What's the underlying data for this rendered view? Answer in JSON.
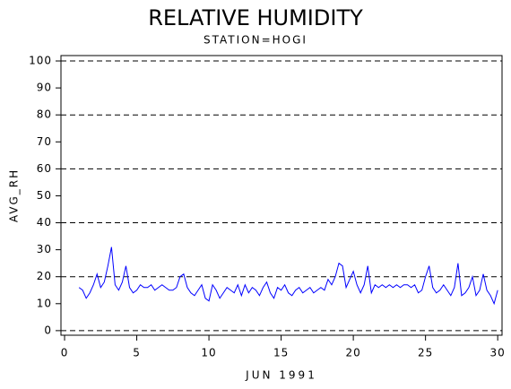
{
  "chart_data": {
    "type": "line",
    "title": "RELATIVE HUMIDITY",
    "subtitle": "STATION=HOGI",
    "ylabel": "AVG_RH",
    "xlabel": "JUN 1991",
    "x": [
      1,
      1.25,
      1.5,
      1.75,
      2,
      2.25,
      2.5,
      2.75,
      3,
      3.25,
      3.5,
      3.75,
      4,
      4.25,
      4.5,
      4.75,
      5,
      5.25,
      5.5,
      5.75,
      6,
      6.25,
      6.5,
      6.75,
      7,
      7.25,
      7.5,
      7.75,
      8,
      8.25,
      8.5,
      8.75,
      9,
      9.25,
      9.5,
      9.75,
      10,
      10.25,
      10.5,
      10.75,
      11,
      11.25,
      11.5,
      11.75,
      12,
      12.25,
      12.5,
      12.75,
      13,
      13.25,
      13.5,
      13.75,
      14,
      14.25,
      14.5,
      14.75,
      15,
      15.25,
      15.5,
      15.75,
      16,
      16.25,
      16.5,
      16.75,
      17,
      17.25,
      17.5,
      17.75,
      18,
      18.25,
      18.5,
      18.75,
      19,
      19.25,
      19.5,
      19.75,
      20,
      20.25,
      20.5,
      20.75,
      21,
      21.25,
      21.5,
      21.75,
      22,
      22.25,
      22.5,
      22.75,
      23,
      23.25,
      23.5,
      23.75,
      24,
      24.25,
      24.5,
      24.75,
      25,
      25.25,
      25.5,
      25.75,
      26,
      26.25,
      26.5,
      26.75,
      27,
      27.25,
      27.5,
      27.75,
      28,
      28.25,
      28.5,
      28.75,
      29,
      29.25,
      29.5,
      29.75,
      30
    ],
    "series": [
      {
        "name": "AVG_RH",
        "color": "#0000ff",
        "values": [
          16,
          15,
          12,
          14,
          17,
          21,
          16,
          18,
          24,
          31,
          17,
          15,
          18,
          24,
          16,
          14,
          15,
          17,
          16,
          16,
          17,
          15,
          16,
          17,
          16,
          15,
          15,
          16,
          20,
          21,
          16,
          14,
          13,
          15,
          17,
          12,
          11,
          17,
          15,
          12,
          14,
          16,
          15,
          14,
          17,
          13,
          17,
          14,
          16,
          15,
          13,
          16,
          18,
          14,
          12,
          16,
          15,
          17,
          14,
          13,
          15,
          16,
          14,
          15,
          16,
          14,
          15,
          16,
          15,
          19,
          17,
          20,
          25,
          24,
          16,
          19,
          22,
          17,
          14,
          17,
          24,
          14,
          17,
          16,
          17,
          16,
          17,
          16,
          17,
          16,
          17,
          17,
          16,
          17,
          14,
          15,
          20,
          24,
          16,
          14,
          15,
          17,
          15,
          13,
          16,
          25,
          13,
          14,
          16,
          20,
          13,
          15,
          21,
          15,
          13,
          10,
          15
        ]
      }
    ],
    "xlim": [
      -0.25,
      30.3
    ],
    "xticks": [
      0,
      5,
      10,
      15,
      20,
      25,
      30
    ],
    "ylim": [
      -1.7,
      102
    ],
    "yticks": [
      0,
      10,
      20,
      30,
      40,
      50,
      60,
      70,
      80,
      90,
      100
    ],
    "ygrid": [
      0,
      20,
      40,
      60,
      80,
      100
    ]
  }
}
